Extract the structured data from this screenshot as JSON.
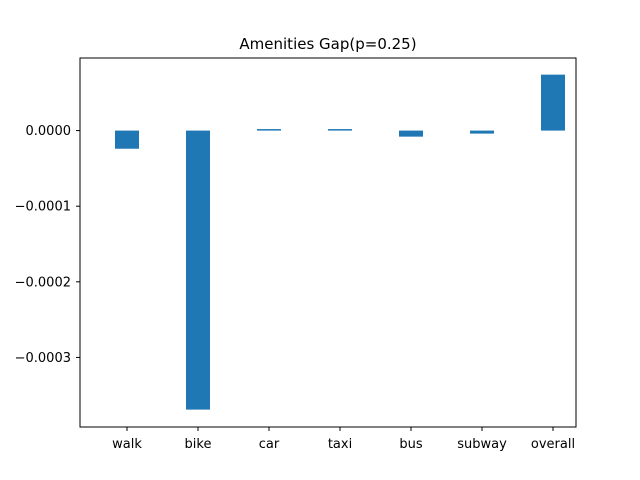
{
  "chart_data": {
    "type": "bar",
    "title": "Amenities Gap(p=0.25)",
    "xlabel": "",
    "ylabel": "",
    "categories": [
      "walk",
      "bike",
      "car",
      "taxi",
      "bus",
      "subway",
      "overall"
    ],
    "values": [
      -2.4e-05,
      -0.000369,
      2e-06,
      2e-06,
      -8e-06,
      -4e-06,
      7.4e-05
    ],
    "ylim": [
      -0.000392,
      9.6e-05
    ],
    "yticks": [
      0.0,
      -0.0001,
      -0.0002,
      -0.0003
    ],
    "ytick_labels": [
      "0.0000",
      "−0.0001",
      "−0.0002",
      "−0.0003"
    ],
    "bar_color": "#1f77b4",
    "grid": false,
    "legend": "none"
  }
}
